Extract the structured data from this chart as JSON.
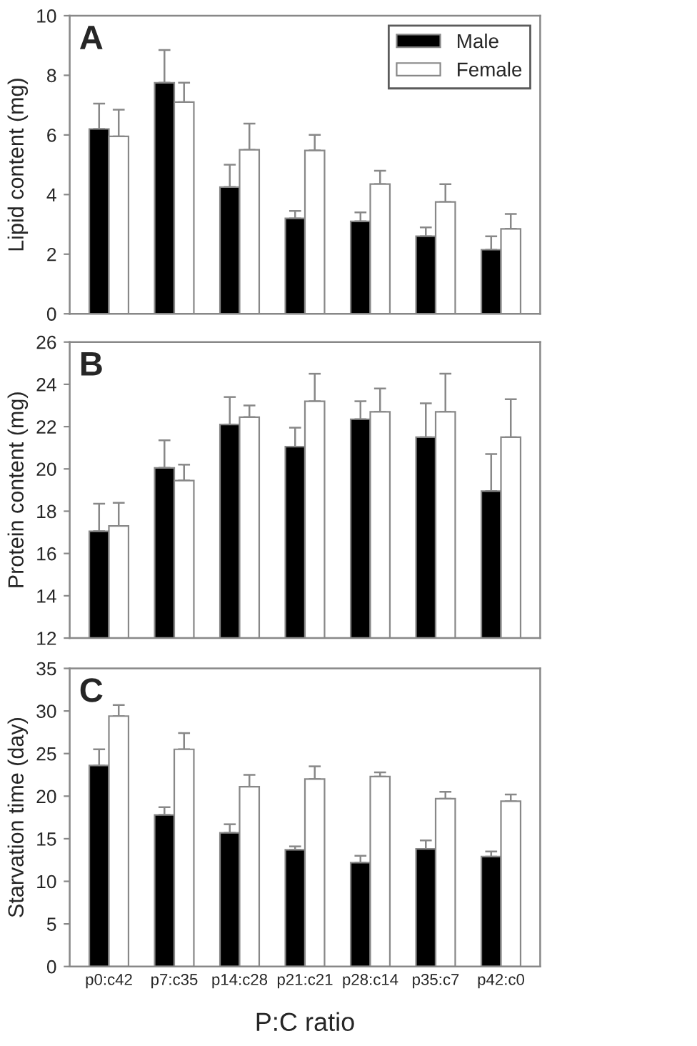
{
  "chart_data": [
    {
      "type": "bar",
      "ylabel": "Lipid content (mg)",
      "annotations": [
        "A"
      ],
      "categories": [
        null,
        null,
        null,
        null,
        null,
        null,
        null
      ],
      "ylim": [
        0,
        10
      ],
      "yticks": [
        0,
        2,
        4,
        6,
        8,
        10
      ],
      "legend": "top right",
      "grid": false,
      "series": [
        {
          "name": "Male",
          "color": "#000000",
          "values": [
            6.2,
            7.75,
            4.25,
            3.2,
            3.1,
            2.6,
            2.15
          ],
          "errors": [
            [
              6.2,
              7.05
            ],
            [
              7.75,
              8.85
            ],
            [
              4.25,
              5.0
            ],
            [
              3.2,
              3.45
            ],
            [
              3.1,
              3.4
            ],
            [
              2.6,
              2.9
            ],
            [
              2.15,
              2.6
            ]
          ]
        },
        {
          "name": "Female",
          "color": "#ffffff",
          "values": [
            5.95,
            7.1,
            5.5,
            5.48,
            4.35,
            3.75,
            2.85
          ],
          "errors": [
            [
              5.95,
              6.85
            ],
            [
              7.1,
              7.75
            ],
            [
              5.5,
              6.38
            ],
            [
              5.48,
              6.0
            ],
            [
              4.35,
              4.8
            ],
            [
              3.75,
              4.35
            ],
            [
              2.85,
              3.35
            ]
          ]
        }
      ]
    },
    {
      "type": "bar",
      "ylabel": "Protein content (mg)",
      "annotations": [
        "B"
      ],
      "categories": [
        null,
        null,
        null,
        null,
        null,
        null,
        null
      ],
      "ylim": [
        12,
        26
      ],
      "yticks": [
        12,
        14,
        16,
        18,
        20,
        22,
        24,
        26
      ],
      "grid": false,
      "series": [
        {
          "color": "#000000",
          "values": [
            17.05,
            20.05,
            22.1,
            21.05,
            22.35,
            21.5,
            18.95
          ],
          "errors": [
            [
              17.05,
              18.35
            ],
            [
              20.05,
              21.35
            ],
            [
              22.1,
              23.4
            ],
            [
              21.05,
              21.95
            ],
            [
              22.35,
              23.2
            ],
            [
              21.5,
              23.1
            ],
            [
              18.95,
              20.7
            ]
          ]
        },
        {
          "color": "#ffffff",
          "values": [
            17.3,
            19.45,
            22.45,
            23.2,
            22.7,
            22.7,
            21.5
          ],
          "errors": [
            [
              17.3,
              18.4
            ],
            [
              19.45,
              20.2
            ],
            [
              22.45,
              23.0
            ],
            [
              23.2,
              24.5
            ],
            [
              22.7,
              23.8
            ],
            [
              22.7,
              24.5
            ],
            [
              21.5,
              23.3
            ]
          ]
        }
      ]
    },
    {
      "type": "bar",
      "ylabel": "Starvation time (day)",
      "xlabel": "P:C ratio",
      "annotations": [
        "C"
      ],
      "categories": [
        "p0:c42",
        "p7:c35",
        "p14:c28",
        "p21:c21",
        "p28:c14",
        "p35:c7",
        "p42:c0"
      ],
      "ylim": [
        0,
        35
      ],
      "yticks": [
        0,
        5,
        10,
        15,
        20,
        25,
        30,
        35
      ],
      "grid": false,
      "series": [
        {
          "color": "#000000",
          "values": [
            23.6,
            17.8,
            15.7,
            13.7,
            12.2,
            13.8,
            12.9
          ],
          "errors": [
            [
              23.6,
              25.5
            ],
            [
              17.8,
              18.7
            ],
            [
              15.7,
              16.7
            ],
            [
              13.7,
              14.1
            ],
            [
              12.2,
              13.0
            ],
            [
              13.8,
              14.8
            ],
            [
              12.9,
              13.5
            ]
          ]
        },
        {
          "color": "#ffffff",
          "values": [
            29.4,
            25.5,
            21.1,
            22.0,
            22.3,
            19.7,
            19.4
          ],
          "errors": [
            [
              29.4,
              30.7
            ],
            [
              25.5,
              27.4
            ],
            [
              21.1,
              22.5
            ],
            [
              22.0,
              23.5
            ],
            [
              22.3,
              22.8
            ],
            [
              19.7,
              20.5
            ],
            [
              19.4,
              20.2
            ]
          ]
        }
      ]
    }
  ]
}
